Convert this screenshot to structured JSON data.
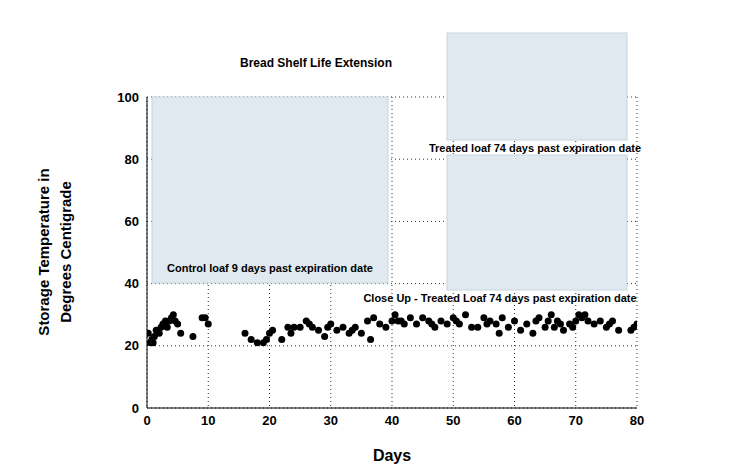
{
  "chart_data": {
    "type": "scatter",
    "title": "Bread Shelf Life Extension",
    "x_label": "Days",
    "y_label": [
      "Storage Temperature in",
      "Degrees Centigrade"
    ],
    "annotations": [
      "Control loaf 9 days past expiration date",
      "Treated loaf 74 days past expiration date",
      "Close Up - Treated Loaf 74 days past expiration date"
    ],
    "x": [
      0.2,
      0.5,
      0.8,
      1,
      1.2,
      1.5,
      2,
      2.3,
      2.6,
      3,
      3.3,
      3.6,
      4,
      4.3,
      4.6,
      5,
      5.5,
      7.5,
      9,
      9.5,
      10,
      16,
      17,
      18,
      19,
      19.5,
      20,
      20.5,
      22,
      23,
      23.5,
      24,
      25,
      26,
      26.5,
      27,
      28,
      29,
      29.5,
      30,
      31,
      32,
      33,
      33.5,
      34,
      35,
      36,
      36.5,
      37,
      38,
      39,
      40,
      40.5,
      41,
      41.5,
      42,
      43,
      44,
      45,
      46,
      46.5,
      47,
      48,
      49,
      50,
      50.5,
      51,
      52,
      53,
      54,
      55,
      55.5,
      56,
      57,
      57.5,
      58,
      59,
      60,
      61,
      62,
      63,
      63.5,
      64,
      65,
      65.5,
      66,
      66.5,
      67,
      67.5,
      68,
      69,
      69.5,
      70,
      70.5,
      71,
      71.5,
      72,
      73,
      74,
      75,
      75.5,
      76,
      77,
      79,
      79.5,
      80
    ],
    "values": [
      24,
      21,
      22,
      21,
      23,
      25,
      24,
      26,
      27,
      28,
      26,
      28,
      29,
      30,
      28,
      27,
      24,
      23,
      29,
      29,
      27,
      24,
      22,
      21,
      21,
      22,
      24,
      25,
      22,
      26,
      24,
      26,
      26,
      28,
      27,
      26,
      25,
      23,
      26,
      27,
      25,
      26,
      24,
      25,
      26,
      24,
      28,
      22,
      29,
      27,
      26,
      28,
      30,
      28,
      28,
      27,
      29,
      27,
      29,
      28,
      27,
      26,
      28,
      27,
      29,
      28,
      27,
      30,
      26,
      26,
      29,
      27,
      28,
      27,
      24,
      29,
      26,
      28,
      25,
      27,
      24,
      28,
      29,
      26,
      28,
      30,
      26,
      28,
      27,
      25,
      27,
      26,
      28,
      30,
      29,
      30,
      28,
      27,
      28,
      26,
      27,
      28,
      25,
      25,
      26,
      27
    ],
    "color": "#000000",
    "marker": "circle",
    "xlim": [
      0,
      80
    ],
    "xticks": [
      0,
      10,
      20,
      30,
      40,
      50,
      60,
      70,
      80
    ],
    "ylim": [
      0,
      100
    ],
    "yticks": [
      0,
      20,
      40,
      60,
      80,
      100
    ],
    "grid": true
  }
}
